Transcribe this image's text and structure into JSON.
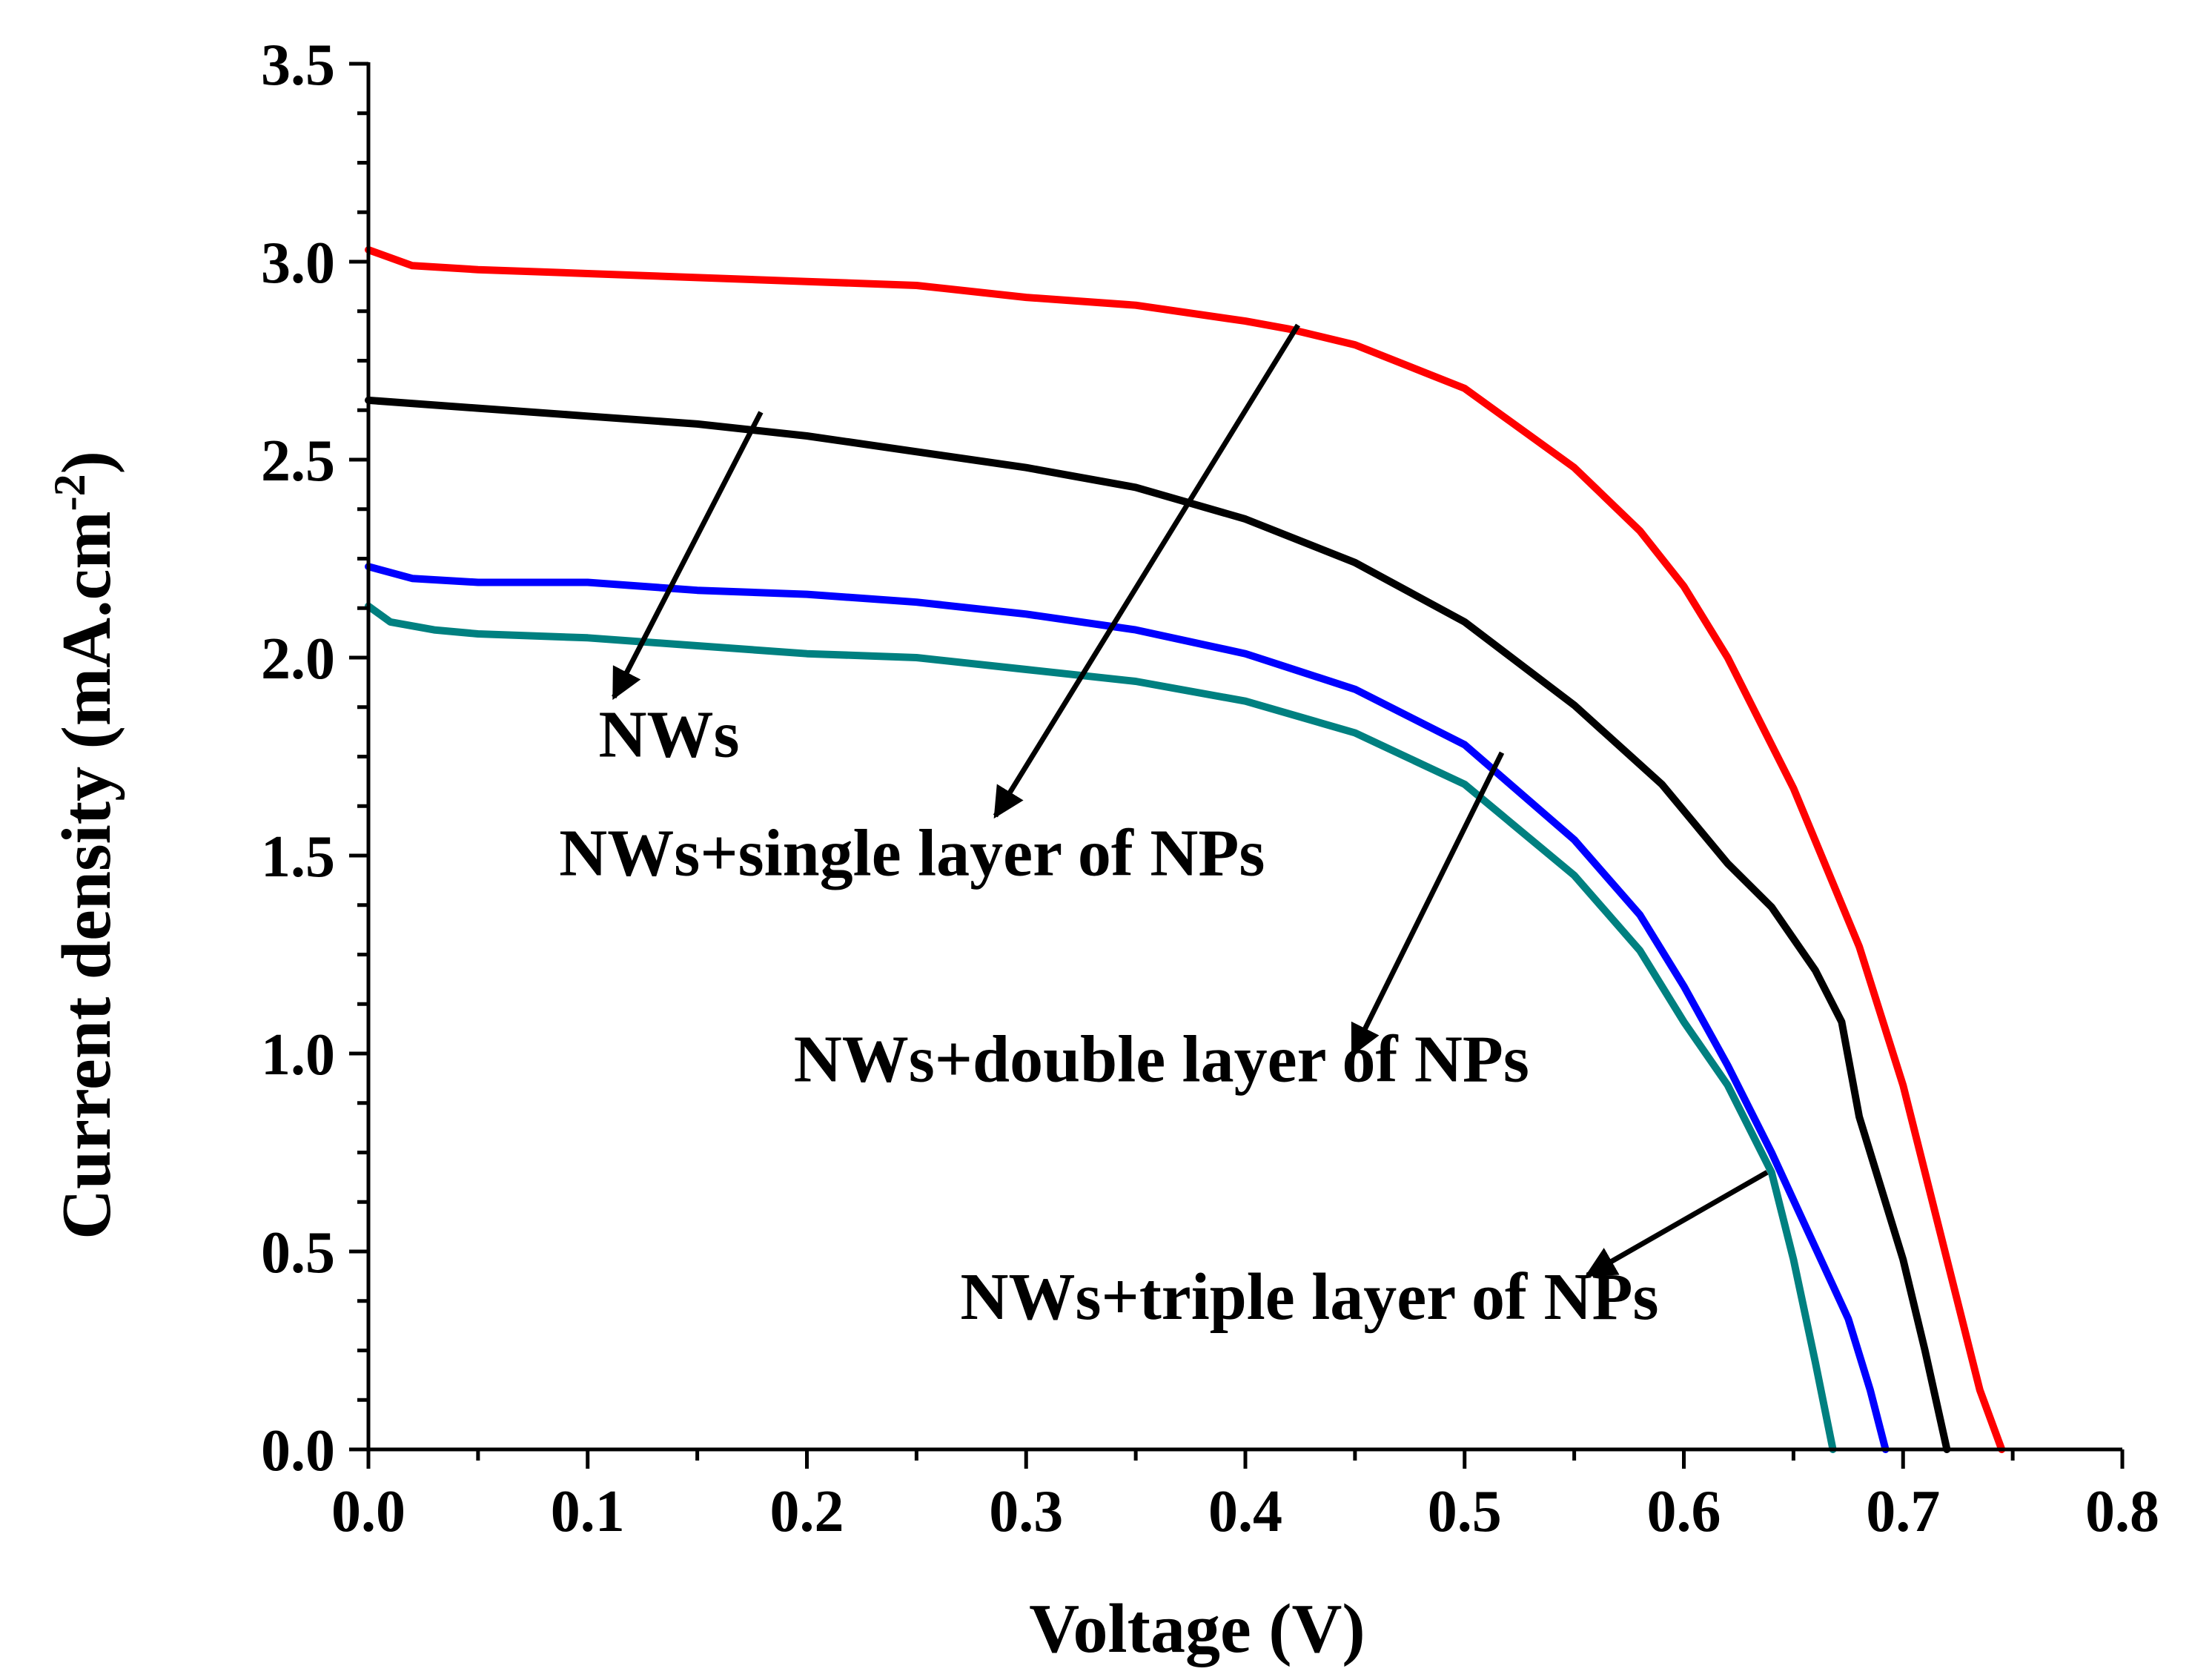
{
  "chart_data": {
    "type": "line",
    "title": "",
    "xlabel": "Voltage (V)",
    "ylabel_main": "Current density (mA.cm",
    "ylabel_sup": "-2",
    "ylabel_end": ")",
    "xlim": [
      0.0,
      0.8
    ],
    "ylim": [
      0.0,
      3.5
    ],
    "xticks": [
      0.0,
      0.1,
      0.2,
      0.3,
      0.4,
      0.5,
      0.6,
      0.7,
      0.8
    ],
    "yticks": [
      0.0,
      0.5,
      1.0,
      1.5,
      2.0,
      2.5,
      3.0,
      3.5
    ],
    "xtick_labels": [
      "0.0",
      "0.1",
      "0.2",
      "0.3",
      "0.4",
      "0.5",
      "0.6",
      "0.7",
      "0.8"
    ],
    "ytick_labels": [
      "0.0",
      "0.5",
      "1.0",
      "1.5",
      "2.0",
      "2.5",
      "3.0",
      "3.5"
    ],
    "grid": false,
    "series": [
      {
        "name": "NWs+single layer of NPs",
        "color": "#ff0000",
        "x": [
          0.0,
          0.02,
          0.05,
          0.1,
          0.15,
          0.2,
          0.25,
          0.3,
          0.35,
          0.4,
          0.42,
          0.45,
          0.5,
          0.55,
          0.58,
          0.6,
          0.62,
          0.65,
          0.68,
          0.7,
          0.72,
          0.735,
          0.745
        ],
        "y": [
          3.03,
          2.99,
          2.98,
          2.97,
          2.96,
          2.95,
          2.94,
          2.91,
          2.89,
          2.85,
          2.83,
          2.79,
          2.68,
          2.48,
          2.32,
          2.18,
          2.0,
          1.67,
          1.27,
          0.92,
          0.48,
          0.15,
          0.0
        ]
      },
      {
        "name": "NWs",
        "color": "#000000",
        "x": [
          0.0,
          0.05,
          0.1,
          0.15,
          0.2,
          0.25,
          0.3,
          0.35,
          0.4,
          0.45,
          0.5,
          0.55,
          0.59,
          0.62,
          0.64,
          0.66,
          0.672,
          0.68,
          0.7,
          0.71,
          0.72
        ],
        "y": [
          2.65,
          2.63,
          2.61,
          2.59,
          2.56,
          2.52,
          2.48,
          2.43,
          2.35,
          2.24,
          2.09,
          1.88,
          1.68,
          1.48,
          1.37,
          1.21,
          1.08,
          0.84,
          0.48,
          0.25,
          0.0
        ]
      },
      {
        "name": "NWs+double layer of NPs",
        "color": "#0000ff",
        "x": [
          0.0,
          0.02,
          0.05,
          0.1,
          0.15,
          0.2,
          0.25,
          0.3,
          0.35,
          0.4,
          0.45,
          0.5,
          0.55,
          0.58,
          0.6,
          0.62,
          0.64,
          0.66,
          0.675,
          0.685,
          0.692
        ],
        "y": [
          2.23,
          2.2,
          2.19,
          2.19,
          2.17,
          2.16,
          2.14,
          2.11,
          2.07,
          2.01,
          1.92,
          1.78,
          1.54,
          1.35,
          1.17,
          0.97,
          0.75,
          0.51,
          0.33,
          0.15,
          0.0
        ]
      },
      {
        "name": "NWs+triple layer of NPs",
        "color": "#008080",
        "x": [
          0.0,
          0.01,
          0.03,
          0.05,
          0.1,
          0.15,
          0.2,
          0.25,
          0.3,
          0.35,
          0.4,
          0.45,
          0.5,
          0.55,
          0.58,
          0.6,
          0.62,
          0.64,
          0.65,
          0.66,
          0.668
        ],
        "y": [
          2.13,
          2.09,
          2.07,
          2.06,
          2.05,
          2.03,
          2.01,
          2.0,
          1.97,
          1.94,
          1.89,
          1.81,
          1.68,
          1.45,
          1.26,
          1.08,
          0.92,
          0.7,
          0.48,
          0.22,
          0.0
        ]
      }
    ],
    "annotations": [
      {
        "text": "NWs",
        "arrow_from": [
          0.179,
          2.62
        ],
        "arrow_to": [
          0.112,
          1.9
        ],
        "text_at": [
          0.105,
          1.75
        ]
      },
      {
        "text": "NWs+single layer of NPs",
        "arrow_from": [
          0.424,
          2.84
        ],
        "arrow_to": [
          0.286,
          1.6
        ],
        "text_at": [
          0.087,
          1.45
        ]
      },
      {
        "text": "NWs+double layer of NPs",
        "arrow_from": [
          0.517,
          1.76
        ],
        "arrow_to": [
          0.449,
          1.0
        ],
        "text_at": [
          0.194,
          0.93
        ]
      },
      {
        "text": "NWs+triple layer of NPs",
        "arrow_from": [
          0.638,
          0.7
        ],
        "arrow_to": [
          0.556,
          0.44
        ],
        "text_at": [
          0.27,
          0.33
        ]
      }
    ]
  }
}
